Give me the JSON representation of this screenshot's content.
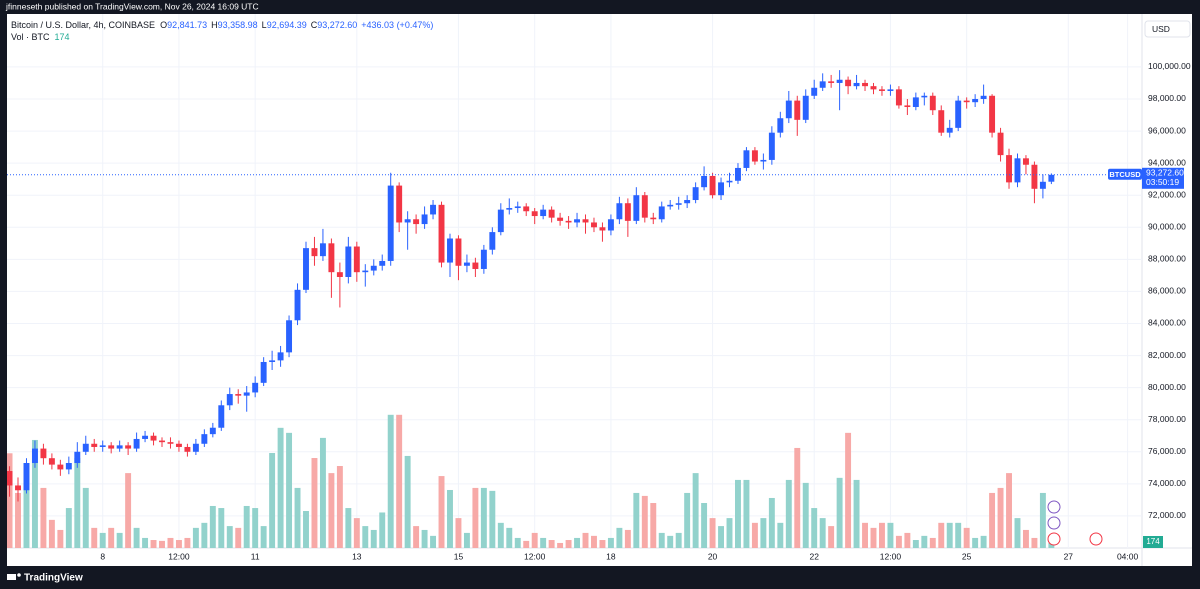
{
  "banner": "jfinneseth published on TradingView.com, Nov 26, 2024 16:09 UTC",
  "footer": "TradingView",
  "chart_data": {
    "type": "candlestick",
    "title": "Bitcoin / U.S. Dollar, 4h, COINBASE",
    "legend_items": [
      {
        "key": "O",
        "label": "92,841.73"
      },
      {
        "key": "H",
        "label": "93,358.98"
      },
      {
        "key": "L",
        "label": "92,694.39"
      },
      {
        "key": "C",
        "label": "93,272.60"
      }
    ],
    "change_label": "+436.03 (+0.47%)",
    "volume_title": "Vol · BTC",
    "symbol": "BTCUSD",
    "countdown": "03:50:19",
    "currency": "USD",
    "up_color": "#2962ff",
    "down_color": "#f23645",
    "volume_up_color": "#92d2cc",
    "volume_down_color": "#f7a9a7",
    "grid": true,
    "open": [
      74800,
      73900,
      73600,
      75300,
      76200,
      75600,
      75200,
      74900,
      75300,
      76000,
      76500,
      76300,
      76400,
      76200,
      76400,
      76200,
      76800,
      77000,
      76700,
      76600,
      76500,
      76300,
      76000,
      76500,
      77100,
      77500,
      78900,
      79600,
      79500,
      79700,
      80300,
      81600,
      81700,
      82200,
      84200,
      86100,
      88700,
      88200,
      89000,
      87200,
      86900,
      88800,
      87200,
      87300,
      87600,
      87900,
      92600,
      90300,
      90500,
      90200,
      90800,
      91400,
      87800,
      89300,
      87600,
      87800,
      87400,
      88600,
      89700,
      91100,
      91200,
      91300,
      91000,
      90700,
      91100,
      90600,
      90400,
      90300,
      90500,
      90300,
      90000,
      89800,
      90500,
      91500,
      90400,
      92000,
      90600,
      90500,
      91300,
      91400,
      91500,
      91700,
      92500,
      93200,
      92000,
      92800,
      92900,
      93700,
      94800,
      94100,
      94200,
      95900,
      96800,
      97900,
      96700,
      98200,
      98700,
      99100,
      99000,
      99200,
      98800,
      99000,
      98800,
      98600,
      98500,
      98600,
      97600,
      97500,
      98100,
      98200,
      97300,
      95900,
      96200,
      97900,
      97800,
      98000,
      98200,
      95900,
      94500,
      92800,
      94300,
      93900,
      92400,
      92841.73
    ],
    "high": [
      75100,
      74400,
      75600,
      76700,
      76500,
      75900,
      75500,
      75700,
      76600,
      77000,
      76800,
      76700,
      76600,
      76700,
      76600,
      77200,
      77300,
      77200,
      76900,
      76900,
      76700,
      76500,
      76800,
      77400,
      77800,
      79200,
      80000,
      79900,
      80100,
      80700,
      81900,
      82300,
      82600,
      84500,
      86500,
      89100,
      89400,
      89900,
      89300,
      87800,
      89400,
      89100,
      87700,
      88000,
      88300,
      93400,
      92800,
      91000,
      90800,
      91300,
      91700,
      91600,
      89600,
      89500,
      88300,
      88100,
      88900,
      90000,
      91500,
      91800,
      91600,
      91500,
      91200,
      91400,
      91300,
      90900,
      90700,
      90900,
      90800,
      90600,
      90300,
      90800,
      91900,
      91800,
      92500,
      92200,
      90900,
      91600,
      91700,
      91900,
      92000,
      92800,
      93800,
      93400,
      93100,
      93400,
      94000,
      95000,
      95000,
      94600,
      96300,
      97200,
      98500,
      98200,
      98600,
      99200,
      99600,
      99500,
      99800,
      99400,
      99500,
      99200,
      99000,
      98800,
      98900,
      98800,
      98000,
      98400,
      98400,
      98400,
      97600,
      96700,
      98200,
      98100,
      98300,
      98900,
      98300,
      96200,
      94900,
      94600,
      94500,
      94100,
      93300,
      93358.98
    ],
    "low": [
      73200,
      72900,
      73400,
      75000,
      75200,
      74900,
      74500,
      74600,
      75000,
      75800,
      76000,
      76000,
      75900,
      76000,
      75800,
      76000,
      76600,
      76400,
      76300,
      76200,
      76000,
      75700,
      75800,
      76300,
      76900,
      77300,
      78600,
      79000,
      78500,
      79400,
      80100,
      81100,
      81300,
      81900,
      83900,
      85900,
      87600,
      87900,
      85600,
      85000,
      86500,
      86600,
      86300,
      87000,
      87300,
      87600,
      89700,
      88600,
      89600,
      89900,
      90500,
      87500,
      86900,
      86700,
      87200,
      86900,
      87100,
      88300,
      89500,
      90800,
      90900,
      90700,
      90200,
      90500,
      90300,
      90100,
      89900,
      90000,
      89600,
      89700,
      89100,
      89500,
      90200,
      89400,
      90200,
      90300,
      90200,
      90300,
      91100,
      91100,
      91200,
      91500,
      92300,
      91800,
      91700,
      92500,
      92700,
      93500,
      93900,
      93600,
      93900,
      95600,
      96500,
      95700,
      96500,
      98000,
      98500,
      98700,
      97300,
      98300,
      98600,
      98500,
      98300,
      98200,
      98200,
      97400,
      97000,
      97300,
      97600,
      97000,
      95700,
      95600,
      96000,
      97400,
      97500,
      97700,
      95600,
      94100,
      92400,
      92500,
      93300,
      91500,
      91800,
      92694.39
    ],
    "close": [
      73900,
      73600,
      75300,
      76200,
      75600,
      75200,
      74900,
      75300,
      76000,
      76500,
      76300,
      76400,
      76200,
      76400,
      76200,
      76800,
      77000,
      76700,
      76600,
      76500,
      76300,
      76000,
      76500,
      77100,
      77500,
      78900,
      79600,
      79500,
      79700,
      80300,
      81600,
      81700,
      82200,
      84200,
      86100,
      88700,
      88200,
      89000,
      87200,
      86900,
      88800,
      87200,
      87300,
      87600,
      87900,
      92600,
      90300,
      90500,
      90200,
      90800,
      91400,
      87800,
      89300,
      87600,
      87800,
      87400,
      88600,
      89700,
      91100,
      91200,
      91300,
      91000,
      90700,
      91100,
      90600,
      90400,
      90300,
      90500,
      90300,
      90000,
      89800,
      90500,
      91500,
      90400,
      92000,
      90600,
      90500,
      91300,
      91400,
      91500,
      91700,
      92500,
      93200,
      92000,
      92800,
      92900,
      93700,
      94800,
      94100,
      94200,
      95900,
      96800,
      97900,
      96700,
      98200,
      98700,
      99100,
      99000,
      99200,
      98800,
      99000,
      98800,
      98600,
      98500,
      98600,
      97600,
      97500,
      98100,
      98200,
      97300,
      95900,
      96200,
      97900,
      97800,
      98000,
      98200,
      95900,
      94500,
      92800,
      94300,
      93900,
      92400,
      92836.57,
      93272.6
    ],
    "volume": [
      3200,
      1860,
      2870,
      3650,
      2030,
      950,
      610,
      1350,
      3040,
      2030,
      680,
      510,
      680,
      510,
      2530,
      680,
      340,
      270,
      240,
      340,
      270,
      340,
      680,
      850,
      1420,
      1350,
      740,
      680,
      1420,
      1350,
      740,
      3210,
      4060,
      3890,
      2030,
      1250,
      3040,
      3720,
      2530,
      2770,
      1350,
      1010,
      740,
      610,
      1200,
      4500,
      4500,
      3110,
      740,
      610,
      410,
      2430,
      1960,
      1010,
      510,
      2030,
      2030,
      1930,
      850,
      680,
      340,
      240,
      510,
      340,
      270,
      170,
      270,
      340,
      510,
      410,
      270,
      340,
      680,
      610,
      1860,
      1760,
      1520,
      510,
      410,
      510,
      1860,
      2530,
      1520,
      1010,
      740,
      1010,
      2300,
      2300,
      850,
      1010,
      1690,
      850,
      2300,
      3380,
      2200,
      1350,
      1010,
      740,
      2370,
      3890,
      2300,
      850,
      680,
      850,
      850,
      410,
      510,
      270,
      410,
      340,
      850,
      850,
      850,
      680,
      340,
      410,
      1860,
      2030,
      2530,
      1010,
      610,
      340,
      1860,
      174
    ],
    "xlim": [
      -0.3,
      133.7
    ],
    "xticks": [
      {
        "value": 11,
        "label": "8"
      },
      {
        "value": 20,
        "label": "12:00"
      },
      {
        "value": 29,
        "label": "11"
      },
      {
        "value": 41,
        "label": "13"
      },
      {
        "value": 53,
        "label": "15"
      },
      {
        "value": 62,
        "label": "12:00"
      },
      {
        "value": 71,
        "label": "18"
      },
      {
        "value": 83,
        "label": "20"
      },
      {
        "value": 95,
        "label": "22"
      },
      {
        "value": 104,
        "label": "12:00"
      },
      {
        "value": 113,
        "label": "25"
      },
      {
        "value": 125,
        "label": "27"
      },
      {
        "value": 132,
        "label": "04:00"
      }
    ],
    "ylim": [
      70000,
      103300
    ],
    "yticks": [
      {
        "value": 72000,
        "label": "72,000.00"
      },
      {
        "value": 74000,
        "label": "74,000.00"
      },
      {
        "value": 76000,
        "label": "76,000.00"
      },
      {
        "value": 78000,
        "label": "78,000.00"
      },
      {
        "value": 80000,
        "label": "80,000.00"
      },
      {
        "value": 82000,
        "label": "82,000.00"
      },
      {
        "value": 84000,
        "label": "84,000.00"
      },
      {
        "value": 86000,
        "label": "86,000.00"
      },
      {
        "value": 88000,
        "label": "88,000.00"
      },
      {
        "value": 90000,
        "label": "90,000.00"
      },
      {
        "value": 92000,
        "label": "92,000.00"
      },
      {
        "value": 94000,
        "label": "94,000.00"
      },
      {
        "value": 96000,
        "label": "96,000.00"
      },
      {
        "value": 98000,
        "label": "98,000.00"
      },
      {
        "value": 100000,
        "label": "100,000.00"
      }
    ],
    "y2lim": [
      0,
      5000
    ]
  }
}
